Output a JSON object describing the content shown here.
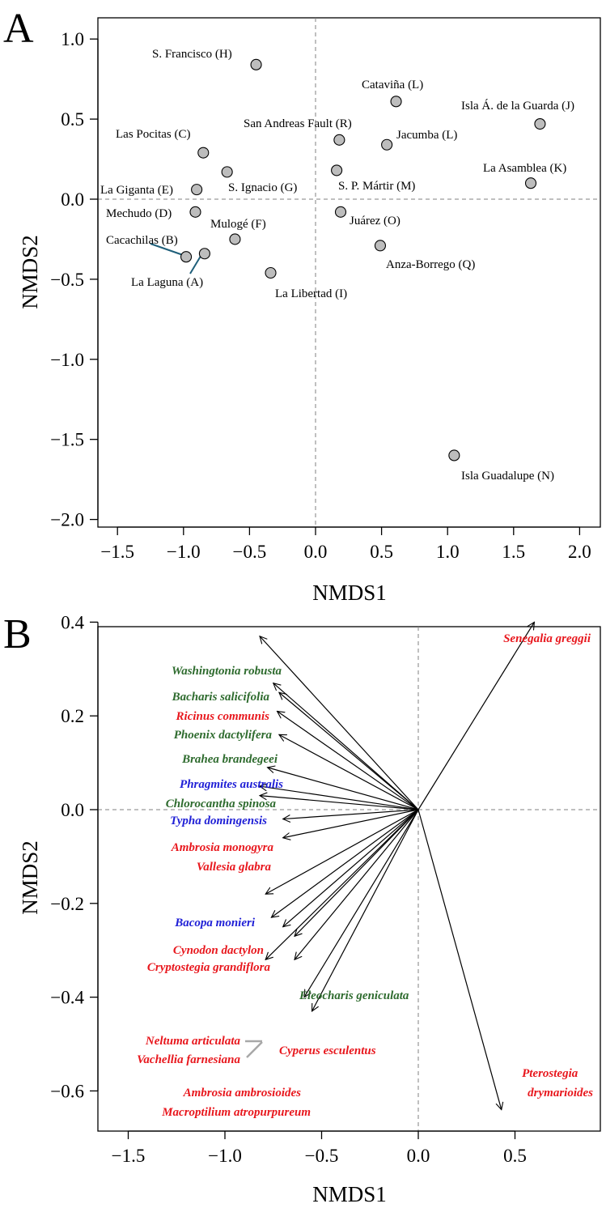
{
  "chart_data": [
    {
      "type": "scatter",
      "panel": "A",
      "xlabel": "NMDS1",
      "ylabel": "NMDS2",
      "xlim": [
        -1.6,
        2.2
      ],
      "ylim": [
        -2.05,
        1.15
      ],
      "x_ticks": [
        -1.5,
        -1.0,
        -0.5,
        0.0,
        0.5,
        1.0,
        1.5,
        2.0
      ],
      "x_tick_labels": [
        "−1.5",
        "−1.0",
        "−0.5",
        "0.0",
        "0.5",
        "1.0",
        "1.5",
        "2.0"
      ],
      "y_ticks": [
        1.0,
        0.5,
        0.0,
        -0.5,
        -1.0,
        -1.5,
        -2.0
      ],
      "y_tick_labels": [
        "1.0",
        "0.5",
        "0.0",
        "−0.5",
        "−1.0",
        "−1.5",
        "−2.0"
      ],
      "reference_lines": {
        "x": 0,
        "y": 0
      },
      "point_color": "#bdbdbd",
      "leader_color": "#1f5f7a",
      "points": [
        {
          "label": "S. Francisco (H)",
          "x": -0.45,
          "y": 0.84
        },
        {
          "label": "Cataviña (L)",
          "x": 0.61,
          "y": 0.61
        },
        {
          "label": "Isla Á. de la Guarda (J)",
          "x": 1.7,
          "y": 0.47
        },
        {
          "label": "Las Pocitas (C)",
          "x": -0.85,
          "y": 0.29
        },
        {
          "label": "San Andreas Fault (R)",
          "x": 0.18,
          "y": 0.37
        },
        {
          "label": "Jacumba (L)",
          "x": 0.54,
          "y": 0.34
        },
        {
          "label": "La Giganta (E)",
          "x": -0.9,
          "y": 0.06
        },
        {
          "label": "S. Ignacio (G)",
          "x": -0.67,
          "y": 0.17
        },
        {
          "label": "S. P. Mártir (M)",
          "x": 0.16,
          "y": 0.18
        },
        {
          "label": "La Asamblea (K)",
          "x": 1.63,
          "y": 0.1
        },
        {
          "label": "Mechudo (D)",
          "x": -0.91,
          "y": -0.08
        },
        {
          "label": "Mulogé (F)",
          "x": -0.61,
          "y": -0.25
        },
        {
          "label": "Juárez (O)",
          "x": 0.19,
          "y": -0.08
        },
        {
          "label": "Cacachilas (B)",
          "x": -0.98,
          "y": -0.36
        },
        {
          "label": "La Laguna (A)",
          "x": -0.84,
          "y": -0.34
        },
        {
          "label": "Anza-Borrego (Q)",
          "x": 0.49,
          "y": -0.29
        },
        {
          "label": "La Libertad (I)",
          "x": -0.34,
          "y": -0.46
        },
        {
          "label": "Isla Guadalupe (N)",
          "x": 1.05,
          "y": -1.6
        }
      ]
    },
    {
      "type": "vector",
      "panel": "B",
      "xlabel": "NMDS1",
      "ylabel": "NMDS2",
      "xlim": [
        -1.68,
        0.88
      ],
      "ylim": [
        -0.66,
        0.44
      ],
      "x_ticks": [
        -1.5,
        -1.0,
        -0.5,
        0.0,
        0.5
      ],
      "x_tick_labels": [
        "−1.5",
        "−1.0",
        "−0.5",
        "0.0",
        "0.5"
      ],
      "y_ticks": [
        0.4,
        0.2,
        0.0,
        -0.2,
        -0.4,
        -0.6
      ],
      "y_tick_labels": [
        "0.4",
        "0.2",
        "0.0",
        "−0.2",
        "−0.4",
        "−0.6"
      ],
      "reference_lines": {
        "x": 0,
        "y": 0
      },
      "colors": {
        "native": "#2e6b2e",
        "invasive": "#e8171d",
        "aquatic": "#1f1fd6",
        "leader": "#a8a8a8"
      },
      "vectors": [
        {
          "label": "Washingtonia robusta",
          "x": -0.82,
          "y": 0.37,
          "group": "native"
        },
        {
          "label": "Senegalia greggii",
          "x": 0.6,
          "y": 0.4,
          "group": "invasive"
        },
        {
          "label": "Bacharis salicifolia",
          "x": -0.75,
          "y": 0.27,
          "group": "native"
        },
        {
          "label": "Ricinus communis",
          "x": -0.72,
          "y": 0.25,
          "group": "invasive"
        },
        {
          "label": "Phoenix dactylifera",
          "x": -0.73,
          "y": 0.21,
          "group": "native"
        },
        {
          "label": "Brahea brandegeei",
          "x": -0.72,
          "y": 0.16,
          "group": "native"
        },
        {
          "label": "Phragmites australis",
          "x": -0.78,
          "y": 0.09,
          "group": "aquatic"
        },
        {
          "label": "Chlorocantha spinosa",
          "x": -0.82,
          "y": 0.05,
          "group": "native"
        },
        {
          "label": "Typha domingensis",
          "x": -0.82,
          "y": 0.03,
          "group": "aquatic"
        },
        {
          "label": "Ambrosia monogyra",
          "x": -0.7,
          "y": -0.02,
          "group": "invasive"
        },
        {
          "label": "Vallesia glabra",
          "x": -0.7,
          "y": -0.06,
          "group": "invasive"
        },
        {
          "label": "Bacopa monieri",
          "x": -0.79,
          "y": -0.18,
          "group": "aquatic"
        },
        {
          "label": "Cynodon dactylon",
          "x": -0.76,
          "y": -0.23,
          "group": "invasive"
        },
        {
          "label": "Cryptostegia grandiflora",
          "x": -0.7,
          "y": -0.25,
          "group": "invasive"
        },
        {
          "label": "Eleocharis geniculata",
          "x": -0.64,
          "y": -0.27,
          "group": "native"
        },
        {
          "label": "Neltuma articulata",
          "x": -0.79,
          "y": -0.32,
          "group": "invasive"
        },
        {
          "label": "Vachellia farnesiana",
          "x": -0.79,
          "y": -0.32,
          "group": "invasive"
        },
        {
          "label": "Cyperus esculentus",
          "x": -0.64,
          "y": -0.32,
          "group": "invasive"
        },
        {
          "label": "Ambrosia ambrosioides",
          "x": -0.59,
          "y": -0.4,
          "group": "invasive"
        },
        {
          "label": "Macroptilium atropurpureum",
          "x": -0.55,
          "y": -0.43,
          "group": "invasive"
        },
        {
          "label": "Pterostegia drymarioides",
          "x": 0.43,
          "y": -0.64,
          "group": "invasive"
        }
      ]
    }
  ]
}
